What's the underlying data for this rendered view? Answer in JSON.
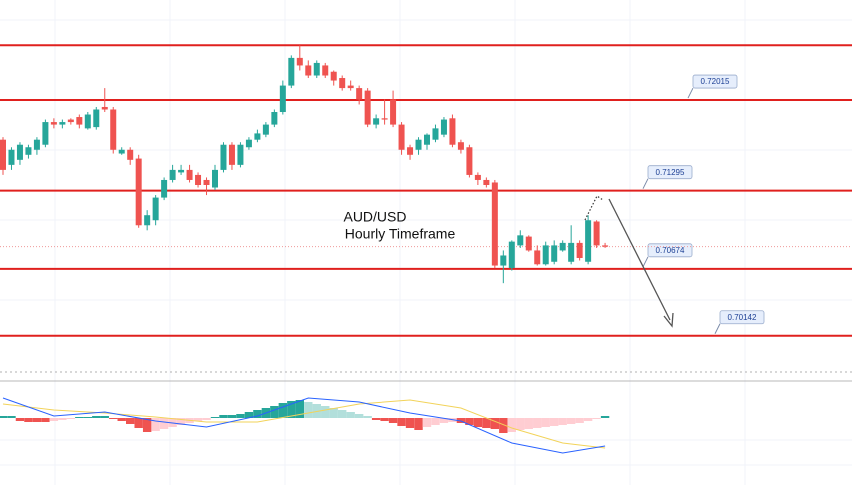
{
  "chart_data": {
    "type": "candlestick",
    "title": "AUD/USD",
    "subtitle": "Hourly Timeframe",
    "ylim": [
      0.6987,
      0.7281
    ],
    "up_color": "#26a69a",
    "down_color": "#ef5350",
    "level_color": "#e0201e",
    "levels": [
      0.7245,
      0.72015,
      0.71295,
      0.70674,
      0.70142
    ],
    "level_tags": [
      false,
      true,
      true,
      true,
      true
    ],
    "candles": [
      [
        0.717,
        0.7172,
        0.7142,
        0.7146
      ],
      [
        0.715,
        0.7164,
        0.7146,
        0.7162
      ],
      [
        0.7154,
        0.7168,
        0.715,
        0.7166
      ],
      [
        0.7158,
        0.7166,
        0.7155,
        0.7164
      ],
      [
        0.7162,
        0.7172,
        0.7158,
        0.717
      ],
      [
        0.7166,
        0.7186,
        0.7164,
        0.7184
      ],
      [
        0.7184,
        0.7187,
        0.7179,
        0.7182
      ],
      [
        0.7182,
        0.7186,
        0.7179,
        0.7184
      ],
      [
        0.7186,
        0.7187,
        0.7182,
        0.7184
      ],
      [
        0.7188,
        0.719,
        0.7179,
        0.7182
      ],
      [
        0.7179,
        0.7192,
        0.7178,
        0.719
      ],
      [
        0.718,
        0.7196,
        0.7178,
        0.7194
      ],
      [
        0.7196,
        0.7211,
        0.7192,
        0.7194
      ],
      [
        0.7194,
        0.7196,
        0.7159,
        0.7162
      ],
      [
        0.7159,
        0.7164,
        0.7158,
        0.7162
      ],
      [
        0.7162,
        0.7164,
        0.715,
        0.7154
      ],
      [
        0.7155,
        0.7158,
        0.71,
        0.7102
      ],
      [
        0.7102,
        0.7114,
        0.7098,
        0.711
      ],
      [
        0.7106,
        0.7126,
        0.7102,
        0.7124
      ],
      [
        0.7124,
        0.714,
        0.7122,
        0.7138
      ],
      [
        0.7138,
        0.715,
        0.7136,
        0.7146
      ],
      [
        0.7144,
        0.715,
        0.7142,
        0.7146
      ],
      [
        0.7146,
        0.715,
        0.7136,
        0.7138
      ],
      [
        0.7142,
        0.7144,
        0.7132,
        0.7134
      ],
      [
        0.7138,
        0.714,
        0.7126,
        0.7134
      ],
      [
        0.7132,
        0.715,
        0.713,
        0.7146
      ],
      [
        0.7146,
        0.7168,
        0.7144,
        0.7166
      ],
      [
        0.7166,
        0.7168,
        0.7146,
        0.715
      ],
      [
        0.715,
        0.7168,
        0.7148,
        0.7166
      ],
      [
        0.7164,
        0.7172,
        0.7162,
        0.717
      ],
      [
        0.717,
        0.7178,
        0.7168,
        0.7175
      ],
      [
        0.7174,
        0.7184,
        0.7172,
        0.7182
      ],
      [
        0.7182,
        0.7194,
        0.718,
        0.7192
      ],
      [
        0.7192,
        0.7217,
        0.719,
        0.7213
      ],
      [
        0.7213,
        0.7237,
        0.7211,
        0.7235
      ],
      [
        0.7235,
        0.7245,
        0.7225,
        0.7229
      ],
      [
        0.7229,
        0.7233,
        0.7219,
        0.7221
      ],
      [
        0.7221,
        0.7233,
        0.7219,
        0.7231
      ],
      [
        0.7229,
        0.7231,
        0.7219,
        0.7221
      ],
      [
        0.7224,
        0.7225,
        0.7213,
        0.7217
      ],
      [
        0.7219,
        0.7221,
        0.7209,
        0.7211
      ],
      [
        0.7213,
        0.7217,
        0.7209,
        0.7211
      ],
      [
        0.7211,
        0.7213,
        0.7198,
        0.7202
      ],
      [
        0.7209,
        0.7211,
        0.718,
        0.7182
      ],
      [
        0.7182,
        0.719,
        0.7179,
        0.7187
      ],
      [
        0.7187,
        0.7202,
        0.7182,
        0.7186
      ],
      [
        0.7202,
        0.7209,
        0.718,
        0.7182
      ],
      [
        0.7182,
        0.7184,
        0.7158,
        0.7162
      ],
      [
        0.7164,
        0.7166,
        0.7154,
        0.7158
      ],
      [
        0.7162,
        0.7172,
        0.7158,
        0.717
      ],
      [
        0.7166,
        0.7175,
        0.7162,
        0.7174
      ],
      [
        0.717,
        0.7182,
        0.7168,
        0.7179
      ],
      [
        0.7174,
        0.7188,
        0.7172,
        0.7186
      ],
      [
        0.7187,
        0.719,
        0.7164,
        0.7166
      ],
      [
        0.7168,
        0.717,
        0.7159,
        0.7162
      ],
      [
        0.7164,
        0.7166,
        0.714,
        0.7142
      ],
      [
        0.7142,
        0.7144,
        0.7134,
        0.7138
      ],
      [
        0.7138,
        0.714,
        0.7132,
        0.7134
      ],
      [
        0.7136,
        0.7138,
        0.7068,
        0.707
      ],
      [
        0.707,
        0.7082,
        0.7056,
        0.7078
      ],
      [
        0.7068,
        0.709,
        0.7066,
        0.7089
      ],
      [
        0.7086,
        0.7098,
        0.7084,
        0.7094
      ],
      [
        0.7093,
        0.7094,
        0.7081,
        0.7082
      ],
      [
        0.7082,
        0.7086,
        0.707,
        0.7071
      ],
      [
        0.7071,
        0.7089,
        0.707,
        0.7086
      ],
      [
        0.7073,
        0.709,
        0.7071,
        0.7086
      ],
      [
        0.7082,
        0.709,
        0.7081,
        0.7088
      ],
      [
        0.7073,
        0.7102,
        0.7071,
        0.7088
      ],
      [
        0.7088,
        0.709,
        0.7074,
        0.7076
      ],
      [
        0.7073,
        0.711,
        0.7071,
        0.7106
      ],
      [
        0.7105,
        0.7106,
        0.7084,
        0.7086
      ],
      [
        0.7086,
        0.7088,
        0.7084,
        0.7085
      ]
    ],
    "indicator": {
      "type": "macd",
      "ylim": [
        -0.00052,
        0.00033
      ],
      "hist_colors": [
        "#26a69a",
        "#b2dfdb",
        "#ffcdd2",
        "#ef5350"
      ],
      "macd_color": "#2962ff",
      "signal_color": "#f2d35a",
      "histogram": [
        2e-05,
        2e-05,
        -3e-05,
        -4e-05,
        -4e-05,
        -4e-05,
        -3e-05,
        -2e-05,
        -1e-05,
        1e-05,
        1e-05,
        2e-05,
        2e-05,
        -1e-05,
        -3e-05,
        -6e-05,
        -0.0001,
        -0.00014,
        -0.00013,
        -0.00011,
        -9e-05,
        -7e-05,
        -5e-05,
        -3e-05,
        -2e-05,
        1e-05,
        3e-05,
        3e-05,
        4e-05,
        6e-05,
        8e-05,
        0.0001,
        0.00012,
        0.00015,
        0.00017,
        0.00018,
        0.00016,
        0.00014,
        0.00012,
        0.0001,
        8e-05,
        6e-05,
        4e-05,
        2e-05,
        -2e-05,
        -3e-05,
        -5e-05,
        -8e-05,
        -0.0001,
        -0.00012,
        -9e-05,
        -7e-05,
        -5e-05,
        -4e-05,
        -5e-05,
        -7e-05,
        -9e-05,
        -0.0001,
        -0.00011,
        -0.00015,
        -0.00014,
        -0.00012,
        -0.00011,
        -0.0001,
        -9e-05,
        -8e-05,
        -7e-05,
        -6e-05,
        -5e-05,
        -3e-05,
        -1e-05,
        2e-05
      ],
      "x": [
        0,
        6,
        12,
        18,
        24,
        30,
        36,
        42,
        48,
        54,
        60,
        66,
        71
      ],
      "macd": [
        0.0002,
        2e-05,
        6e-05,
        -3e-05,
        -9e-05,
        2e-05,
        0.0002,
        0.00016,
        5e-05,
        -3e-05,
        -0.00025,
        -0.00035,
        -0.00028
      ],
      "signal": [
        0.00014,
        8e-05,
        5e-05,
        1e-05,
        -4e-05,
        -4e-05,
        5e-05,
        0.00014,
        0.00018,
        0.0001,
        -0.0001,
        -0.00025,
        -0.0003
      ]
    }
  }
}
